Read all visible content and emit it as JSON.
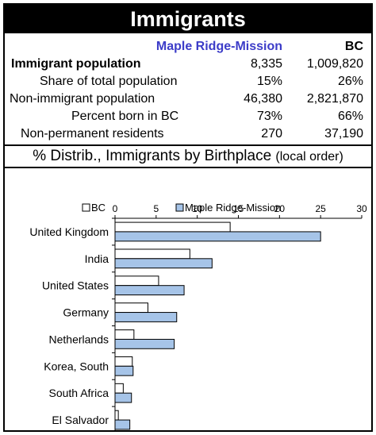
{
  "title": "Immigrants",
  "table": {
    "columns": [
      "Maple Ridge-Mission",
      "BC"
    ],
    "rows": [
      {
        "label": "Immigrant population",
        "v1": "8,335",
        "v2": "1,009,820",
        "bold": true,
        "indent": 8
      },
      {
        "label": "Share of total population",
        "v1": "15%",
        "v2": "26%",
        "bold": false,
        "indent": 44
      },
      {
        "label": "Non-immigrant population",
        "v1": "46,380",
        "v2": "2,821,870",
        "bold": false,
        "indent": 6
      },
      {
        "label": "Percent born in BC",
        "v1": "73%",
        "v2": "66%",
        "bold": false,
        "indent": 84
      },
      {
        "label": "Non-permanent residents",
        "v1": "270",
        "v2": "37,190",
        "bold": false,
        "indent": 20
      }
    ]
  },
  "section": {
    "title_main": "% Distrib., Immigrants by Birthplace",
    "title_note": "(local order)"
  },
  "colors": {
    "bc_fill": "#ffffff",
    "local_fill": "#a6c4e8",
    "bar_stroke": "#000000"
  },
  "chart_data": {
    "type": "bar",
    "orientation": "horizontal",
    "categories": [
      "United Kingdom",
      "India",
      "United States",
      "Germany",
      "Netherlands",
      "Korea, South",
      "South Africa",
      "El Salvador"
    ],
    "series": [
      {
        "name": "BC",
        "values": [
          14.0,
          9.1,
          5.3,
          4.0,
          2.3,
          2.1,
          1.0,
          0.4
        ]
      },
      {
        "name": "Maple Ridge-Mission",
        "values": [
          25.0,
          11.8,
          8.4,
          7.5,
          7.2,
          2.2,
          2.0,
          1.8
        ]
      }
    ],
    "xlim": [
      0,
      30
    ],
    "xticks": [
      0,
      5,
      10,
      15,
      20,
      25,
      30
    ],
    "legend_position": "top",
    "grid": false
  }
}
